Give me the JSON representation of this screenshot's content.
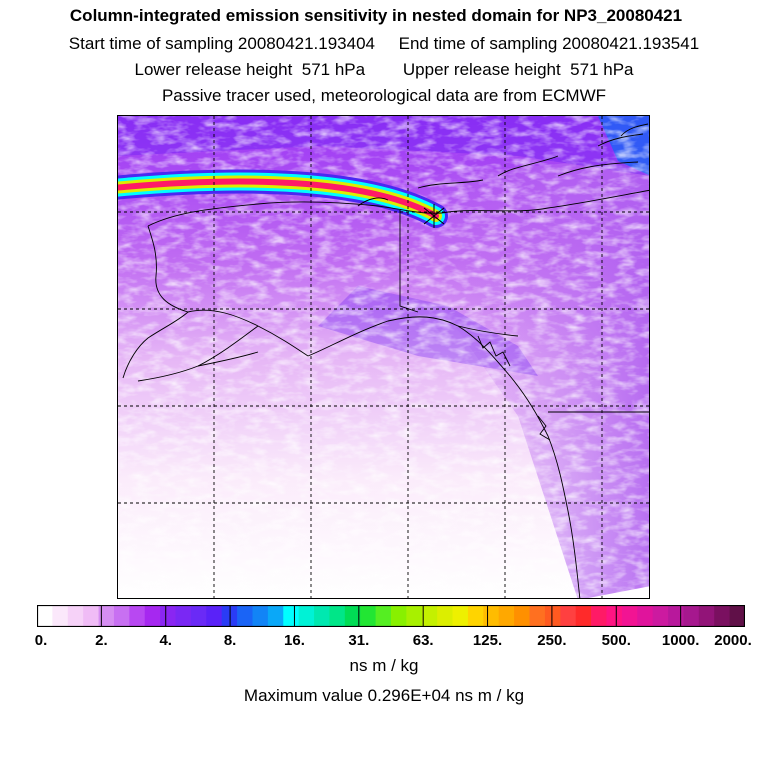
{
  "header": {
    "title": "Column-integrated emission sensitivity in nested domain for NP3_20080421",
    "sampling_line": "Start time of sampling 20080421.193404     End time of sampling 20080421.193541",
    "release_line": "Lower release height  571 hPa        Upper release height  571 hPa",
    "tracer_line": "Passive tracer used, meteorological data are from ECMWF"
  },
  "colorbar": {
    "tick_labels": [
      "0.",
      "2.",
      "4.",
      "8.",
      "16.",
      "31.",
      "63.",
      "125.",
      "250.",
      "500.",
      "1000.",
      "2000."
    ],
    "colors": [
      "#ffffff",
      "#fbe8fb",
      "#f6d2f8",
      "#f0bcf6",
      "#d68ef2",
      "#c870f2",
      "#b848f2",
      "#a628f0",
      "#8a26f2",
      "#7a28f4",
      "#6a2af6",
      "#5a22f8",
      "#2a3cf6",
      "#1a64f6",
      "#1284f6",
      "#0aa8f8",
      "#00ffff",
      "#00f2d6",
      "#00e8b0",
      "#00e688",
      "#00dd55",
      "#22e633",
      "#55ee22",
      "#88f000",
      "#a8f000",
      "#c4f000",
      "#dcee00",
      "#eef000",
      "#ffd400",
      "#ffbc00",
      "#ffa800",
      "#ff9000",
      "#ff7020",
      "#ff5a20",
      "#ff4040",
      "#ff2a2a",
      "#ff1a66",
      "#ff1483",
      "#f21493",
      "#e0149c",
      "#cc1aa0",
      "#b8189c",
      "#a6188e",
      "#921478",
      "#7a1060",
      "#601048"
    ],
    "units": "ns m / kg",
    "maximum_label": "Maximum value  0.296E+04 ns m / kg"
  },
  "map": {
    "gridlines": "dashed",
    "plume_color": "#ff1a66",
    "region": "Alaska and western Canada"
  }
}
